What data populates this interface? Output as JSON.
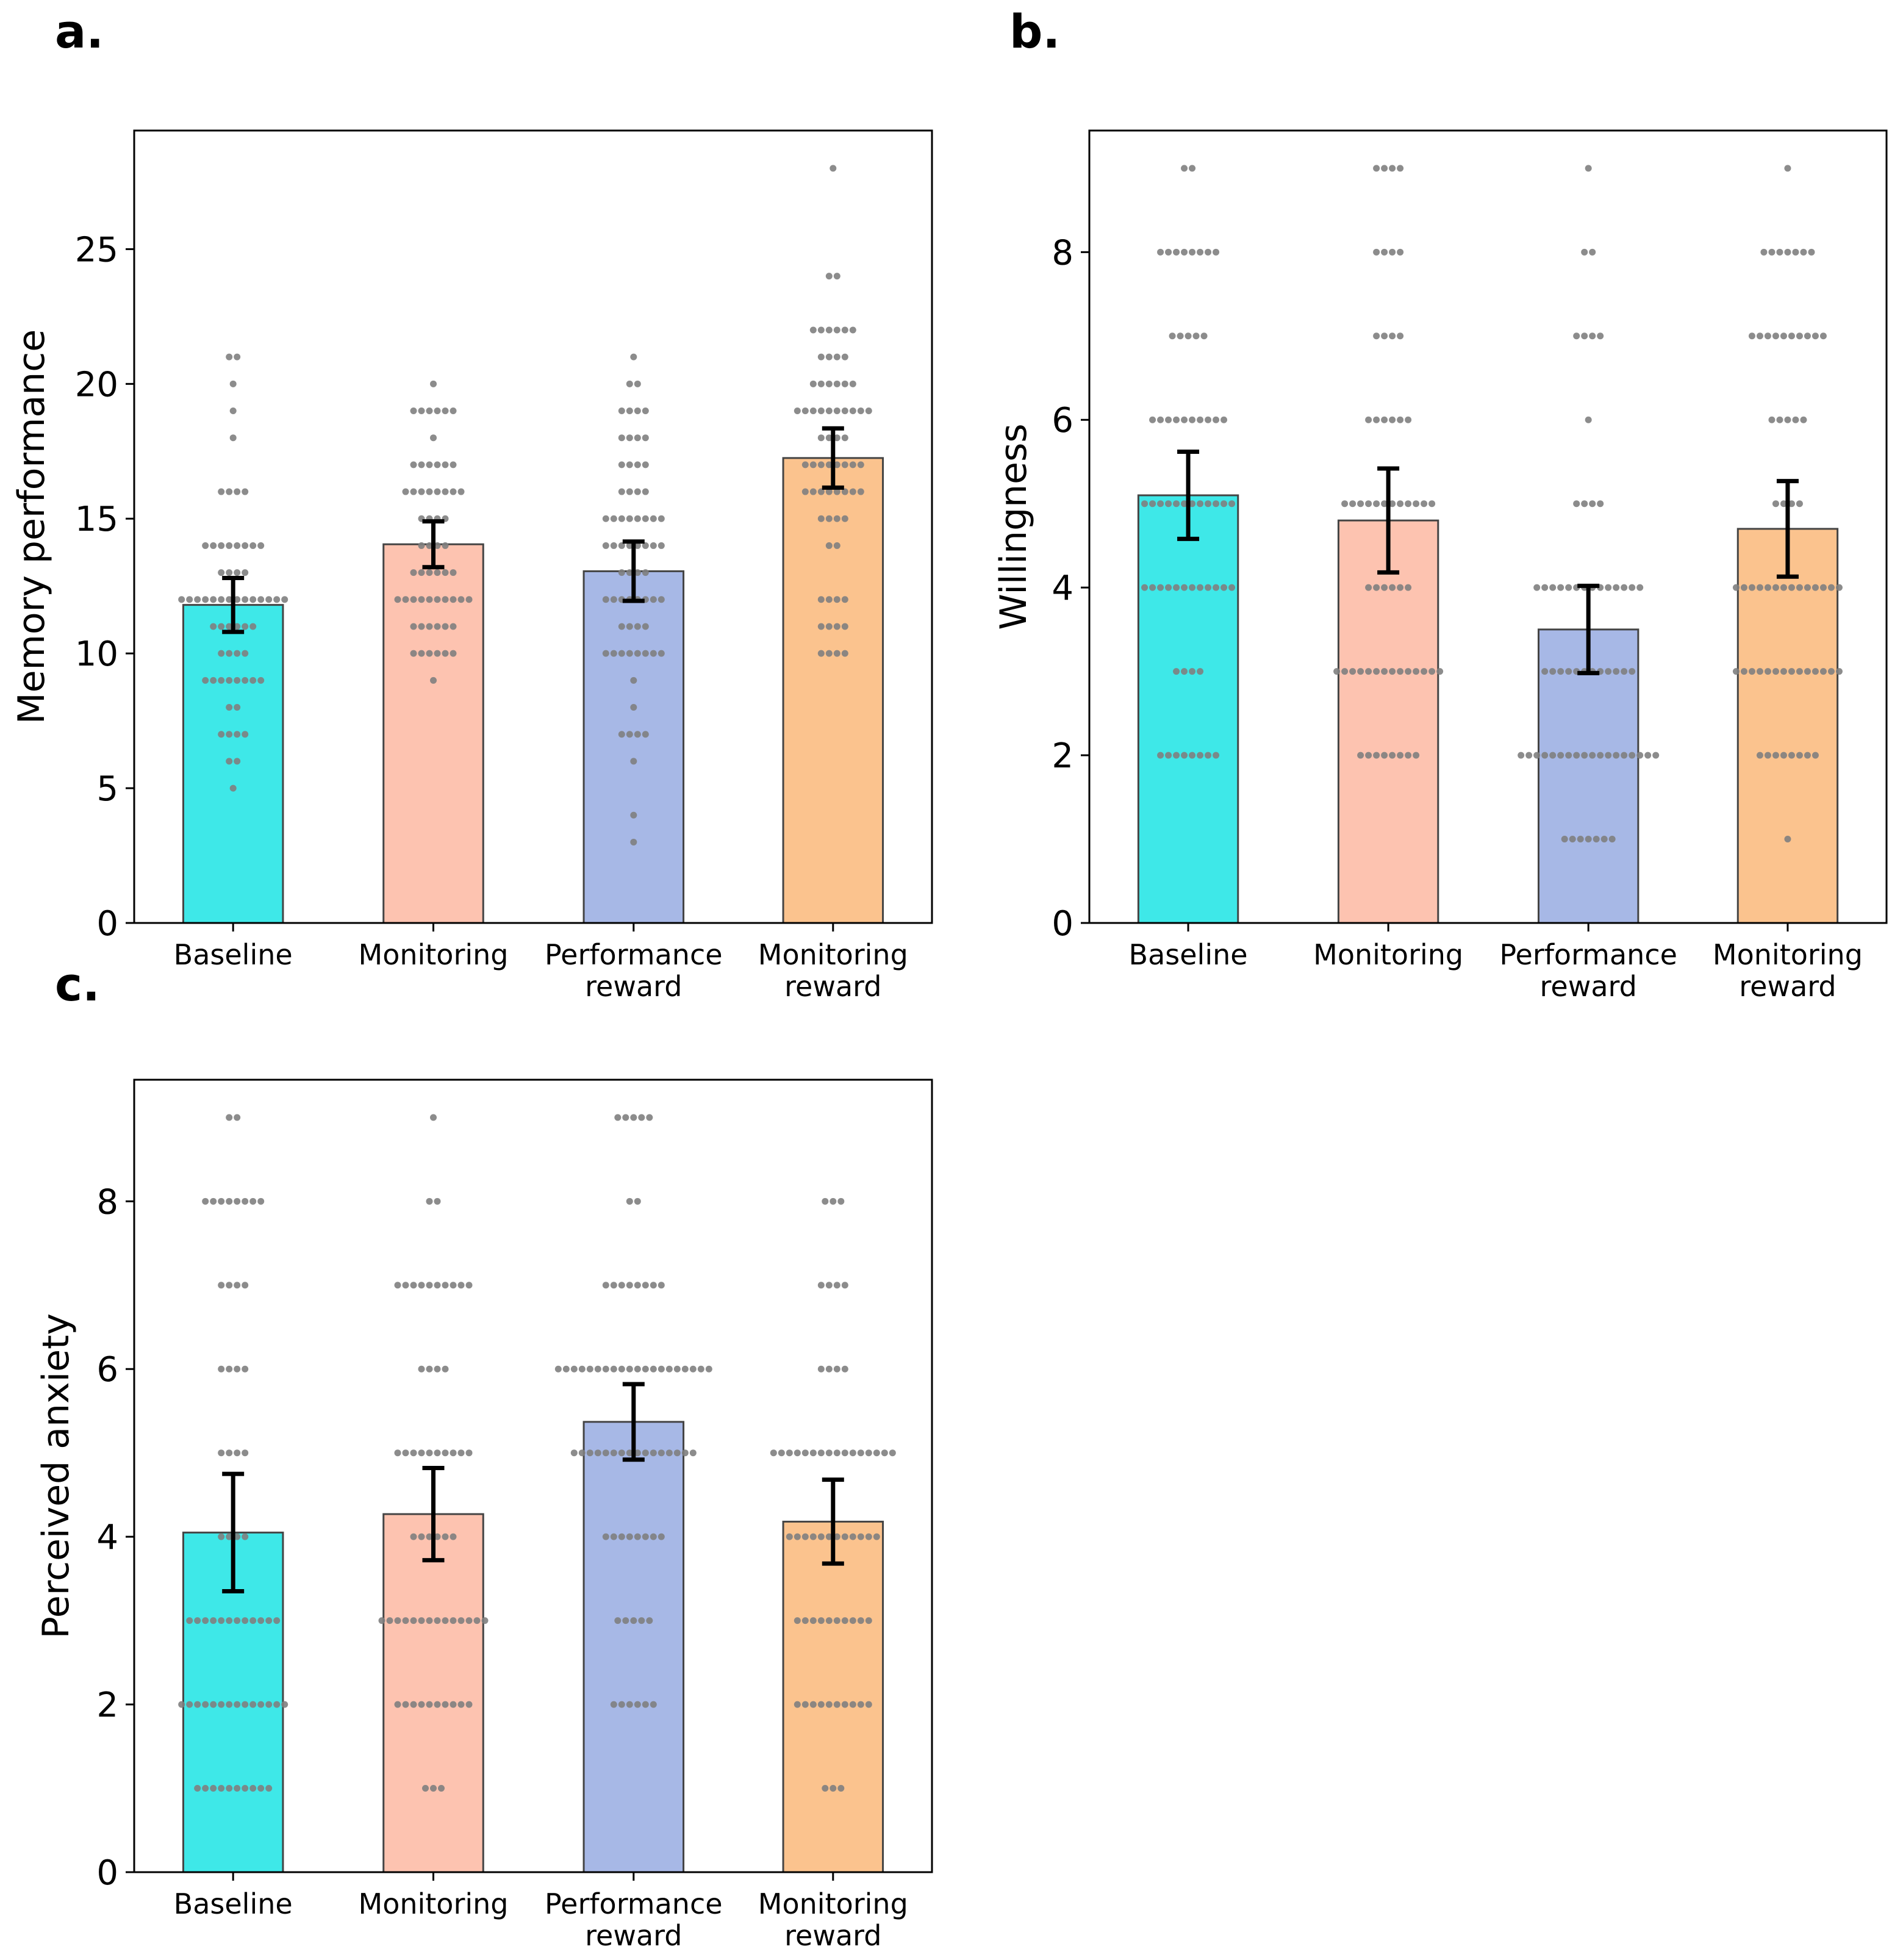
{
  "colors": {
    "categories": [
      "#3ee8e8",
      "#fdc3b0",
      "#a7b8e6",
      "#fbc38e"
    ],
    "bar_edge": "#444444",
    "dot": "#808080",
    "error": "#000000"
  },
  "categories": [
    "Baseline",
    "Monitoring",
    "Performance\nreward",
    "Monitoring\nreward"
  ],
  "chart_data": [
    {
      "type": "bar",
      "panel": "a.",
      "ylabel": "Memory performance",
      "categories": [
        "Baseline",
        "Monitoring",
        "Performance reward",
        "Monitoring reward"
      ],
      "values": [
        11.8,
        14.05,
        13.05,
        17.25
      ],
      "errors": [
        1.0,
        0.85,
        1.1,
        1.1
      ],
      "ylim": [
        0,
        29.4
      ],
      "yticks": [
        0,
        5,
        10,
        15,
        20,
        25
      ],
      "points": [
        [
          [
            5,
            1
          ],
          [
            6,
            2
          ],
          [
            7,
            4
          ],
          [
            8,
            2
          ],
          [
            9,
            8
          ],
          [
            10,
            4
          ],
          [
            11,
            6
          ],
          [
            12,
            14
          ],
          [
            13,
            4
          ],
          [
            14,
            8
          ],
          [
            16,
            4
          ],
          [
            18,
            1
          ],
          [
            19,
            1
          ],
          [
            20,
            1
          ],
          [
            21,
            2
          ]
        ],
        [
          [
            9,
            1
          ],
          [
            10,
            6
          ],
          [
            11,
            6
          ],
          [
            12,
            10
          ],
          [
            13,
            6
          ],
          [
            14,
            4
          ],
          [
            15,
            4
          ],
          [
            16,
            8
          ],
          [
            17,
            6
          ],
          [
            18,
            1
          ],
          [
            19,
            6
          ],
          [
            20,
            1
          ]
        ],
        [
          [
            3,
            1
          ],
          [
            4,
            1
          ],
          [
            6,
            1
          ],
          [
            7,
            4
          ],
          [
            8,
            1
          ],
          [
            9,
            1
          ],
          [
            10,
            8
          ],
          [
            11,
            4
          ],
          [
            12,
            8
          ],
          [
            13,
            4
          ],
          [
            14,
            8
          ],
          [
            15,
            8
          ],
          [
            16,
            4
          ],
          [
            17,
            4
          ],
          [
            18,
            4
          ],
          [
            19,
            4
          ],
          [
            20,
            2
          ],
          [
            21,
            1
          ]
        ],
        [
          [
            10,
            4
          ],
          [
            11,
            4
          ],
          [
            12,
            4
          ],
          [
            14,
            2
          ],
          [
            15,
            4
          ],
          [
            16,
            8
          ],
          [
            17,
            8
          ],
          [
            18,
            4
          ],
          [
            19,
            10
          ],
          [
            20,
            6
          ],
          [
            21,
            4
          ],
          [
            22,
            6
          ],
          [
            24,
            2
          ],
          [
            28,
            1
          ]
        ]
      ]
    },
    {
      "type": "bar",
      "panel": "b.",
      "ylabel": "Willingness",
      "categories": [
        "Baseline",
        "Monitoring",
        "Performance reward",
        "Monitoring reward"
      ],
      "values": [
        5.1,
        4.8,
        3.5,
        4.7
      ],
      "errors": [
        0.52,
        0.62,
        0.52,
        0.57
      ],
      "ylim": [
        0,
        9.45
      ],
      "yticks": [
        0,
        2,
        4,
        6,
        8
      ],
      "points": [
        [
          [
            2,
            8
          ],
          [
            3,
            4
          ],
          [
            4,
            12
          ],
          [
            5,
            12
          ],
          [
            6,
            10
          ],
          [
            7,
            5
          ],
          [
            8,
            8
          ],
          [
            9,
            2
          ]
        ],
        [
          [
            2,
            8
          ],
          [
            3,
            14
          ],
          [
            4,
            6
          ],
          [
            5,
            12
          ],
          [
            6,
            6
          ],
          [
            7,
            4
          ],
          [
            8,
            4
          ],
          [
            9,
            4
          ]
        ],
        [
          [
            1,
            7
          ],
          [
            2,
            18
          ],
          [
            3,
            12
          ],
          [
            4,
            14
          ],
          [
            5,
            4
          ],
          [
            6,
            1
          ],
          [
            7,
            4
          ],
          [
            8,
            2
          ],
          [
            9,
            1
          ]
        ],
        [
          [
            1,
            1
          ],
          [
            2,
            8
          ],
          [
            3,
            14
          ],
          [
            4,
            14
          ],
          [
            5,
            4
          ],
          [
            6,
            5
          ],
          [
            7,
            10
          ],
          [
            8,
            7
          ],
          [
            9,
            1
          ]
        ]
      ]
    },
    {
      "type": "bar",
      "panel": "c.",
      "ylabel": "Perceived anxiety",
      "categories": [
        "Baseline",
        "Monitoring",
        "Performance reward",
        "Monitoring reward"
      ],
      "values": [
        4.05,
        4.27,
        5.37,
        4.18
      ],
      "errors": [
        0.7,
        0.55,
        0.45,
        0.5
      ],
      "ylim": [
        0,
        9.45
      ],
      "yticks": [
        0,
        2,
        4,
        6,
        8
      ],
      "points": [
        [
          [
            1,
            10
          ],
          [
            2,
            14
          ],
          [
            3,
            12
          ],
          [
            4,
            4
          ],
          [
            5,
            4
          ],
          [
            6,
            4
          ],
          [
            7,
            4
          ],
          [
            8,
            8
          ],
          [
            9,
            2
          ]
        ],
        [
          [
            1,
            3
          ],
          [
            2,
            10
          ],
          [
            3,
            14
          ],
          [
            4,
            6
          ],
          [
            5,
            10
          ],
          [
            6,
            4
          ],
          [
            7,
            10
          ],
          [
            8,
            2
          ],
          [
            9,
            1
          ]
        ],
        [
          [
            2,
            6
          ],
          [
            3,
            5
          ],
          [
            4,
            8
          ],
          [
            5,
            16
          ],
          [
            6,
            20
          ],
          [
            7,
            8
          ],
          [
            8,
            2
          ],
          [
            9,
            5
          ]
        ],
        [
          [
            1,
            3
          ],
          [
            2,
            10
          ],
          [
            3,
            10
          ],
          [
            4,
            12
          ],
          [
            5,
            16
          ],
          [
            6,
            4
          ],
          [
            7,
            4
          ],
          [
            8,
            3
          ]
        ]
      ]
    }
  ]
}
